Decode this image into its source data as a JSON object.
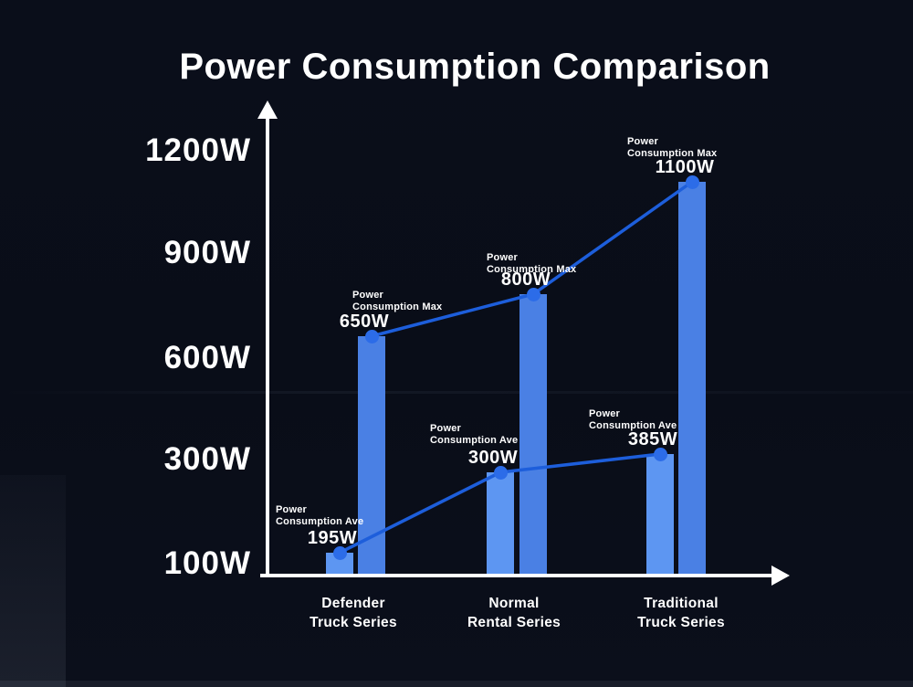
{
  "title": "Power Consumption Comparison",
  "y_axis": {
    "ticks": [
      "1200W",
      "900W",
      "600W",
      "300W",
      "100W"
    ]
  },
  "x_axis": {
    "categories": [
      {
        "line1": "Defender",
        "line2": "Truck Series"
      },
      {
        "line1": "Normal",
        "line2": "Rental Series"
      },
      {
        "line1": "Traditional",
        "line2": "Truck Series"
      }
    ]
  },
  "chart_data": {
    "type": "bar",
    "title": "Power Consumption Comparison",
    "categories": [
      "Defender Truck Series",
      "Normal Rental Series",
      "Traditional Truck Series"
    ],
    "unit": "W",
    "series": [
      {
        "key": "ave",
        "name": "Power Consumption Ave",
        "annotation": [
          "Power",
          "Consumption Ave"
        ],
        "values": [
          195,
          300,
          385
        ],
        "value_labels": [
          "195W",
          "300W",
          "385W"
        ],
        "bar_color": "#5d96f2"
      },
      {
        "key": "max",
        "name": "Power Consumption Max",
        "annotation": [
          "Power",
          "Consumption Max"
        ],
        "values": [
          650,
          800,
          1100
        ],
        "value_labels": [
          "650W",
          "800W",
          "1100W"
        ],
        "bar_color": "#4a80e4"
      }
    ],
    "y_ticks": [
      "1200W",
      "900W",
      "600W",
      "300W",
      "100W"
    ],
    "y_tick_values": [
      1200,
      900,
      600,
      300,
      100
    ],
    "grid": false,
    "legend_position": "labels-above-points",
    "line_color": "#1d5edb",
    "marker_color": "#2c6ce8",
    "axis_color": "#ffffff",
    "background_color": "#090d18",
    "text_color": "#ffffff"
  }
}
